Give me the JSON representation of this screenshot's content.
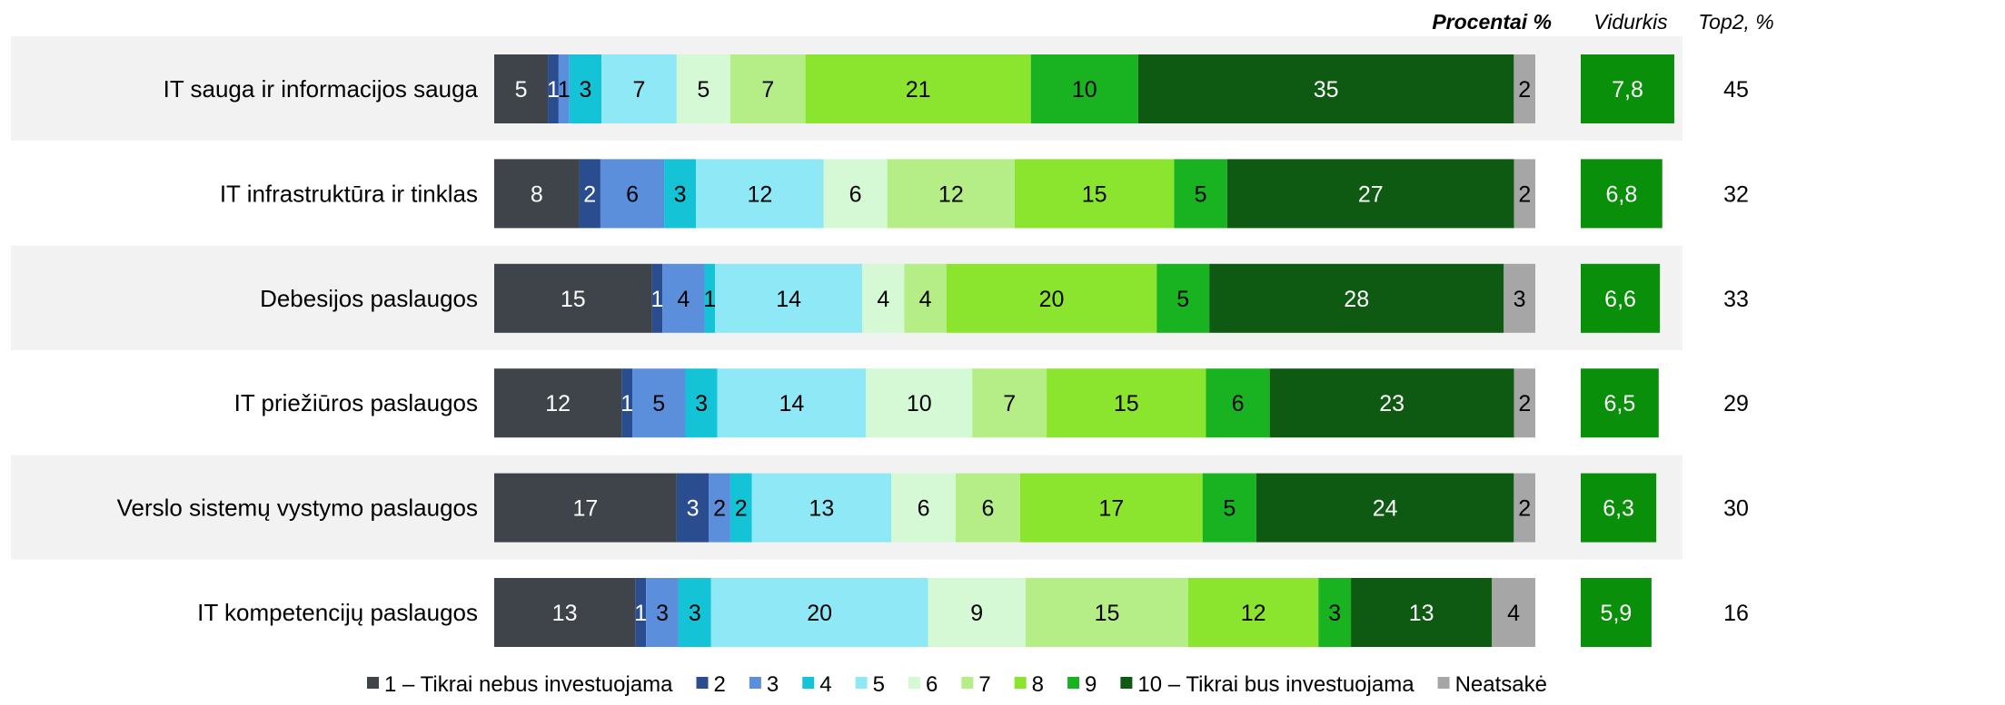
{
  "chart_data": {
    "type": "bar",
    "orientation": "horizontal",
    "stacked": true,
    "header": {
      "percent_label": "Procentai %",
      "mean_label": "Vidurkis",
      "top2_label": "Top2, %"
    },
    "categories": [
      "IT sauga ir informacijos sauga",
      "IT infrastruktūra ir tinklas",
      "Debesijos paslaugos",
      "IT priežiūros paslaugos",
      "Verslo sistemų vystymo paslaugos",
      "IT kompetencijų paslaugos"
    ],
    "series": [
      {
        "name": "1 – Tikrai nebus investuojama",
        "color": "#3e4449",
        "values": [
          5,
          8,
          15,
          12,
          17,
          13
        ]
      },
      {
        "name": "2",
        "color": "#2a4d8f",
        "values": [
          1,
          2,
          1,
          1,
          3,
          1
        ]
      },
      {
        "name": "3",
        "color": "#5b8fdc",
        "values": [
          1,
          6,
          4,
          5,
          2,
          3
        ]
      },
      {
        "name": "4",
        "color": "#15c3d6",
        "values": [
          3,
          3,
          1,
          3,
          2,
          3
        ]
      },
      {
        "name": "5",
        "color": "#8ee8f5",
        "values": [
          7,
          12,
          14,
          14,
          13,
          20
        ]
      },
      {
        "name": "6",
        "color": "#d4f9d4",
        "values": [
          5,
          6,
          4,
          10,
          6,
          9
        ]
      },
      {
        "name": "7",
        "color": "#b5ee86",
        "values": [
          7,
          12,
          4,
          7,
          6,
          15
        ]
      },
      {
        "name": "8",
        "color": "#8be52e",
        "values": [
          21,
          15,
          20,
          15,
          17,
          12
        ]
      },
      {
        "name": "9",
        "color": "#19b221",
        "values": [
          10,
          5,
          5,
          6,
          5,
          3
        ]
      },
      {
        "name": "10 – Tikrai bus investuojama",
        "color": "#0f5a12",
        "values": [
          35,
          27,
          28,
          23,
          24,
          13
        ]
      },
      {
        "name": "Neatsakė",
        "color": "#a6a6a6",
        "values": [
          2,
          2,
          3,
          2,
          2,
          4
        ]
      }
    ],
    "mean": {
      "values": [
        7.8,
        6.8,
        6.6,
        6.5,
        6.3,
        5.9
      ],
      "labels": [
        "7,8",
        "6,8",
        "6,6",
        "6,5",
        "6,3",
        "5,9"
      ],
      "color": "#0a8f0a",
      "range": [
        0,
        10
      ]
    },
    "top2": [
      45,
      32,
      33,
      29,
      30,
      16
    ],
    "legend_position": "bottom",
    "row_band_color": "#f2f2f2"
  }
}
